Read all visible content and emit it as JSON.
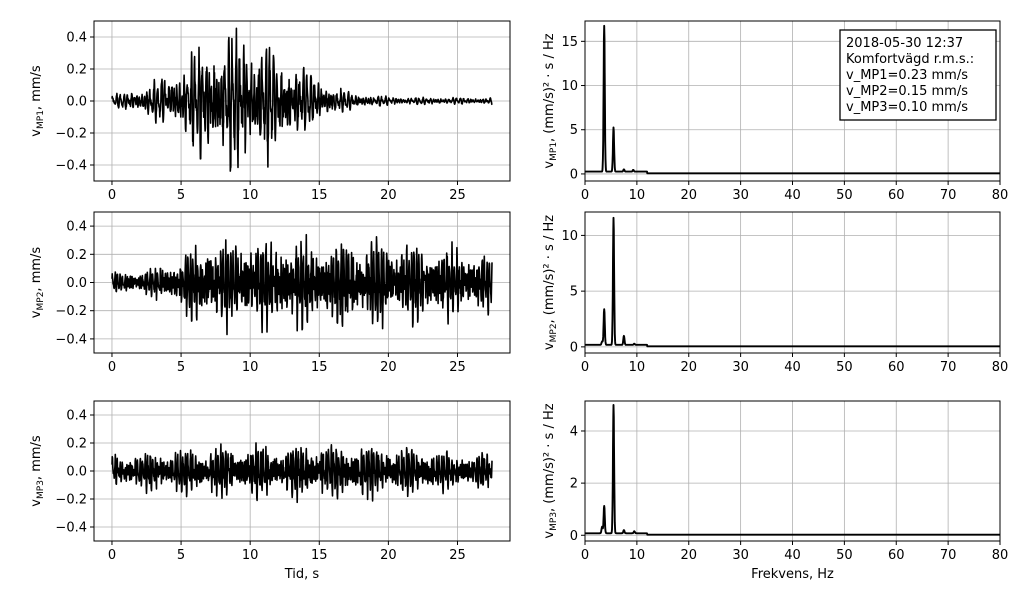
{
  "figure_meta": {
    "background": "#ffffff",
    "line_color": "#000000",
    "grid_color": "#b0b0b0"
  },
  "legend": {
    "lines": [
      "2018-05-30 12:37",
      "Komfortvägd r.m.s.:",
      "v_MP1=0.23 mm/s",
      "v_MP2=0.15 mm/s",
      "v_MP3=0.10 mm/s"
    ],
    "placement": "top-right"
  },
  "chart_data": [
    {
      "type": "line",
      "panel": "time-MP1",
      "ylabel_main": "v",
      "ylabel_sub": "MP1",
      "ylabel_unit": ",  mm/s",
      "xlabel": "",
      "xlim": [
        -1.3,
        28.8
      ],
      "ylim": [
        -0.5,
        0.5
      ],
      "xticks": [
        0,
        5,
        10,
        15,
        20,
        25
      ],
      "yticks": [
        -0.4,
        -0.2,
        0.0,
        0.2,
        0.4
      ],
      "ytick_labels": [
        "−0.4",
        "−0.2",
        "0.0",
        "0.2",
        "0.4"
      ],
      "grid": true,
      "signal": {
        "duration_s": 27.5,
        "peak_amplitude": 0.49,
        "peak_time_s": 9.2,
        "envelope": "spindle",
        "dominant_freq_hz": 3.7
      }
    },
    {
      "type": "line",
      "panel": "time-MP2",
      "ylabel_main": "v",
      "ylabel_sub": "MP2",
      "ylabel_unit": ",  mm/s",
      "xlabel": "",
      "xlim": [
        -1.3,
        28.8
      ],
      "ylim": [
        -0.5,
        0.5
      ],
      "xticks": [
        0,
        5,
        10,
        15,
        20,
        25
      ],
      "yticks": [
        -0.4,
        -0.2,
        0.0,
        0.2,
        0.4
      ],
      "ytick_labels": [
        "−0.4",
        "−0.2",
        "0.0",
        "0.2",
        "0.4"
      ],
      "grid": true,
      "signal": {
        "duration_s": 27.5,
        "peak_amplitude": 0.44,
        "peak_time_s": 10.5,
        "envelope": "plateau",
        "dominant_freq_hz": 5.5
      }
    },
    {
      "type": "line",
      "panel": "time-MP3",
      "ylabel_main": "v",
      "ylabel_sub": "MP3",
      "ylabel_unit": ",  mm/s",
      "xlabel": "Tid, s",
      "xlim": [
        -1.3,
        28.8
      ],
      "ylim": [
        -0.5,
        0.5
      ],
      "xticks": [
        0,
        5,
        10,
        15,
        20,
        25
      ],
      "yticks": [
        -0.4,
        -0.2,
        0.0,
        0.2,
        0.4
      ],
      "ytick_labels": [
        "−0.4",
        "−0.2",
        "0.0",
        "0.2",
        "0.4"
      ],
      "grid": true,
      "signal": {
        "duration_s": 27.5,
        "peak_amplitude": 0.24,
        "peak_time_s": 18.0,
        "envelope": "flat",
        "dominant_freq_hz": 5.5
      }
    },
    {
      "type": "line",
      "panel": "psd-MP1",
      "ylabel_main": "v",
      "ylabel_sub": "MP1",
      "ylabel_unit": ",  (mm/s)² · s / Hz",
      "xlabel": "",
      "xlim": [
        0,
        80
      ],
      "ylim": [
        -0.8,
        17.3
      ],
      "xticks": [
        0,
        10,
        20,
        30,
        40,
        50,
        60,
        70,
        80
      ],
      "yticks": [
        0,
        5,
        10,
        15
      ],
      "grid": true,
      "peaks": [
        {
          "x": 3.7,
          "y": 16.5
        },
        {
          "x": 5.5,
          "y": 5.0
        },
        {
          "x": 7.5,
          "y": 0.25
        },
        {
          "x": 9.3,
          "y": 0.2
        }
      ]
    },
    {
      "type": "line",
      "panel": "psd-MP2",
      "ylabel_main": "v",
      "ylabel_sub": "MP2",
      "ylabel_unit": ",  (mm/s)² · s / Hz",
      "xlabel": "",
      "xlim": [
        0,
        80
      ],
      "ylim": [
        -0.55,
        12.1
      ],
      "xticks": [
        0,
        10,
        20,
        30,
        40,
        50,
        60,
        70,
        80
      ],
      "yticks": [
        0,
        5,
        10
      ],
      "grid": true,
      "peaks": [
        {
          "x": 3.3,
          "y": 0.3
        },
        {
          "x": 3.7,
          "y": 3.2
        },
        {
          "x": 5.5,
          "y": 11.4
        },
        {
          "x": 7.5,
          "y": 0.8
        },
        {
          "x": 9.5,
          "y": 0.1
        }
      ]
    },
    {
      "type": "line",
      "panel": "psd-MP3",
      "ylabel_main": "v",
      "ylabel_sub": "MP3",
      "ylabel_unit": ",  (mm/s)² · s / Hz",
      "xlabel": "Frekvens, Hz",
      "xlim": [
        0,
        80
      ],
      "ylim": [
        -0.22,
        5.15
      ],
      "xticks": [
        0,
        10,
        20,
        30,
        40,
        50,
        60,
        70,
        80
      ],
      "yticks": [
        0,
        2,
        4
      ],
      "grid": true,
      "peaks": [
        {
          "x": 3.3,
          "y": 0.25
        },
        {
          "x": 3.7,
          "y": 1.05
        },
        {
          "x": 5.5,
          "y": 4.92
        },
        {
          "x": 7.5,
          "y": 0.12
        },
        {
          "x": 9.5,
          "y": 0.08
        }
      ]
    }
  ]
}
